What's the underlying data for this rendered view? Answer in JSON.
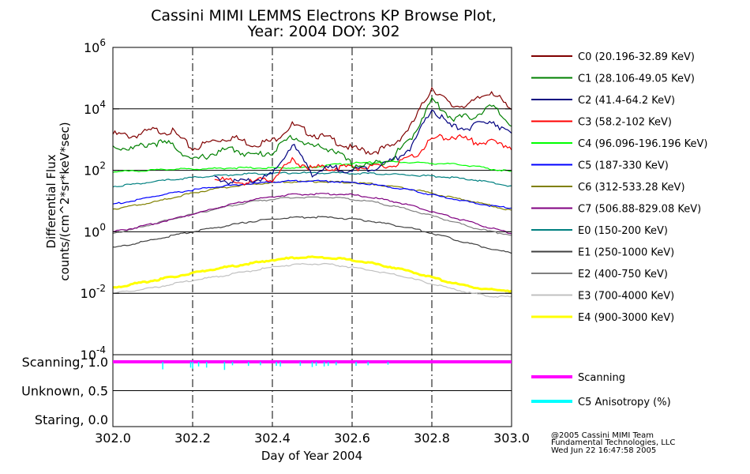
{
  "title_line1": "Cassini MIMI LEMMS Electrons KP Browse Plot,",
  "title_line2": "Year: 2004 DOY: 302",
  "footer": {
    "line1": "@2005 Cassini MIMI Team",
    "line2": "Fundamental Technologies, LLC",
    "line3": "Wed Jun 22 16:47:58 2005"
  },
  "chart_data": [
    {
      "type": "line",
      "title": "Cassini MIMI LEMMS Electrons KP Browse Plot, Year: 2004 DOY: 302",
      "ylabel_line1": "Differential Flux",
      "ylabel_line2": "counts/(cm^2*sr*keV*sec)",
      "yscale": "log",
      "ylim": [
        0.0001,
        1000000
      ],
      "xlim": [
        302.0,
        303.0
      ],
      "y_ticks": [
        {
          "base": "10",
          "exp": "6",
          "value": 1000000
        },
        {
          "base": "10",
          "exp": "4",
          "value": 10000
        },
        {
          "base": "10",
          "exp": "2",
          "value": 100
        },
        {
          "base": "10",
          "exp": "0",
          "value": 1
        },
        {
          "base": "10",
          "exp": "-2",
          "value": 0.01
        },
        {
          "base": "10",
          "exp": "-4",
          "value": 0.0001
        }
      ],
      "x_grid": [
        302.2,
        302.4,
        302.6,
        302.8
      ],
      "x": [
        302.0,
        302.05,
        302.1,
        302.15,
        302.2,
        302.25,
        302.3,
        302.35,
        302.4,
        302.45,
        302.5,
        302.55,
        302.6,
        302.65,
        302.7,
        302.75,
        302.8,
        302.85,
        302.9,
        302.95,
        303.0
      ],
      "series": [
        {
          "name": "C0 (20.196-32.89 KeV)",
          "color": "#800000",
          "values": [
            1500,
            1300,
            2000,
            1800,
            500,
            900,
            1200,
            700,
            900,
            3000,
            1500,
            1000,
            500,
            400,
            600,
            3000,
            50000,
            12000,
            15000,
            40000,
            8000
          ]
        },
        {
          "name": "C1 (28.106-49.05 KeV)",
          "color": "#008000",
          "values": [
            600,
            500,
            800,
            700,
            200,
            350,
            500,
            300,
            400,
            1300,
            600,
            500,
            150,
            150,
            250,
            1200,
            20000,
            5000,
            5500,
            12000,
            3000
          ]
        },
        {
          "name": "C2 (41.4-64.2 KeV)",
          "color": "#000080",
          "values": [
            null,
            null,
            null,
            null,
            null,
            60,
            40,
            45,
            70,
            700,
            80,
            120,
            100,
            120,
            200,
            600,
            10000,
            2500,
            2500,
            4500,
            1300
          ]
        },
        {
          "name": "C3 (58.2-102 KeV)",
          "color": "#ff0000",
          "values": [
            null,
            null,
            null,
            null,
            null,
            60,
            40,
            40,
            55,
            200,
            120,
            120,
            130,
            120,
            140,
            250,
            1000,
            1300,
            900,
            800,
            600
          ]
        },
        {
          "name": "C4 (96.096-196.196 KeV)",
          "color": "#00ff00",
          "values": [
            90,
            95,
            100,
            110,
            110,
            115,
            120,
            120,
            120,
            120,
            125,
            150,
            170,
            180,
            190,
            180,
            170,
            160,
            140,
            110,
            90
          ]
        },
        {
          "name": "C5 (187-330 KeV)",
          "color": "#0000ff",
          "values": [
            8,
            10,
            14,
            18,
            23,
            28,
            33,
            37,
            42,
            45,
            45,
            44,
            40,
            35,
            28,
            22,
            16,
            12,
            9,
            7,
            6
          ]
        },
        {
          "name": "C6 (312-533.28 KeV)",
          "color": "#808000",
          "values": [
            5.5,
            7,
            9,
            13,
            18,
            24,
            30,
            35,
            40,
            42,
            43,
            42,
            40,
            36,
            30,
            24,
            18,
            13,
            10,
            7,
            5
          ]
        },
        {
          "name": "C7 (506.88-829.08 KeV)",
          "color": "#800080",
          "values": [
            1,
            1.3,
            1.8,
            2.6,
            3.8,
            5.5,
            8,
            11,
            14,
            16,
            17,
            17,
            16,
            13,
            10,
            7,
            4.5,
            3,
            2,
            1.3,
            0.9
          ]
        },
        {
          "name": "E0 (150-200 KeV)",
          "color": "#008080",
          "values": [
            30,
            35,
            42,
            50,
            58,
            65,
            72,
            78,
            80,
            82,
            82,
            82,
            80,
            78,
            75,
            70,
            65,
            58,
            50,
            40,
            30
          ]
        },
        {
          "name": "E1 (250-1000 KeV)",
          "color": "#404040",
          "values": [
            0.3,
            0.4,
            0.55,
            0.75,
            1,
            1.3,
            1.7,
            2.2,
            2.6,
            2.9,
            3,
            2.9,
            2.6,
            2.2,
            1.7,
            1.3,
            0.9,
            0.6,
            0.4,
            0.28,
            0.2
          ]
        },
        {
          "name": "E2 (400-750 KeV)",
          "color": "#808080",
          "values": [
            0.9,
            1.2,
            1.8,
            2.6,
            3.7,
            5.2,
            7.2,
            9.5,
            11.5,
            13,
            13.5,
            13,
            11.5,
            9.5,
            7,
            5,
            3.3,
            2.2,
            1.4,
            1,
            0.8
          ]
        },
        {
          "name": "E3 (700-4000 KeV)",
          "color": "#c0c0c0",
          "values": [
            0.01,
            0.012,
            0.015,
            0.02,
            0.026,
            0.033,
            0.042,
            0.055,
            0.07,
            0.085,
            0.09,
            0.085,
            0.07,
            0.055,
            0.042,
            0.03,
            0.02,
            0.014,
            0.01,
            0.008,
            0.0075
          ]
        },
        {
          "name": "E4 (900-3000 KeV)",
          "color": "#ffff00",
          "values": [
            0.015,
            0.02,
            0.026,
            0.034,
            0.045,
            0.06,
            0.075,
            0.095,
            0.12,
            0.14,
            0.15,
            0.14,
            0.12,
            0.095,
            0.07,
            0.05,
            0.033,
            0.022,
            0.016,
            0.013,
            0.012
          ]
        }
      ]
    },
    {
      "type": "line",
      "xlabel": "Day of Year 2004",
      "ylim": [
        0.0,
        1.0
      ],
      "xlim": [
        302.0,
        303.0
      ],
      "y_ticks": [
        {
          "label": "Scanning, 1.0",
          "value": 1.0
        },
        {
          "label": "Unknown, 0.5",
          "value": 0.5
        },
        {
          "label": "Staring, 0.0",
          "value": 0.0
        }
      ],
      "x_ticks": [
        "302.0",
        "302.2",
        "302.4",
        "302.6",
        "302.8",
        "303.0"
      ],
      "x_tick_values": [
        302.0,
        302.2,
        302.4,
        302.6,
        302.8,
        303.0
      ],
      "series": [
        {
          "name": "Scanning",
          "color": "#ff00ff",
          "values": [
            1.0,
            1.0
          ]
        },
        {
          "name": "C5 Anisotropy (%)",
          "color": "#00ffff",
          "spikes": [
            {
              "x": 302.125,
              "y": 0.87
            },
            {
              "x": 302.195,
              "y": 0.9
            },
            {
              "x": 302.2,
              "y": 0.88
            },
            {
              "x": 302.215,
              "y": 0.92
            },
            {
              "x": 302.235,
              "y": 0.9
            },
            {
              "x": 302.28,
              "y": 0.86
            },
            {
              "x": 302.3,
              "y": 0.94
            },
            {
              "x": 302.34,
              "y": 0.93
            },
            {
              "x": 302.37,
              "y": 0.94
            },
            {
              "x": 302.41,
              "y": 0.93
            },
            {
              "x": 302.42,
              "y": 0.92
            },
            {
              "x": 302.47,
              "y": 0.93
            },
            {
              "x": 302.5,
              "y": 0.91
            },
            {
              "x": 302.51,
              "y": 0.93
            },
            {
              "x": 302.53,
              "y": 0.92
            },
            {
              "x": 302.54,
              "y": 0.93
            },
            {
              "x": 302.56,
              "y": 0.94
            },
            {
              "x": 302.61,
              "y": 0.93
            },
            {
              "x": 302.64,
              "y": 0.94
            },
            {
              "x": 302.69,
              "y": 0.95
            }
          ]
        }
      ]
    }
  ]
}
